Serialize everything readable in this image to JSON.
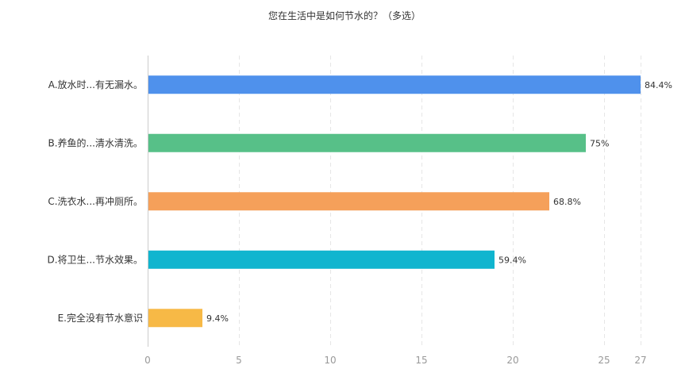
{
  "chart_data": {
    "type": "bar",
    "orientation": "horizontal",
    "title": "您在生活中是如何节水的？（多选）",
    "categories": [
      "A.放水时...有无漏水。",
      "B.养鱼的...清水清洗。",
      "C.洗衣水...再冲厕所。",
      "D.将卫生...节水效果。",
      "E.完全没有节水意识"
    ],
    "values": [
      27,
      24,
      22,
      19,
      3
    ],
    "data_labels": [
      "84.4%",
      "75%",
      "68.8%",
      "59.4%",
      "9.4%"
    ],
    "colors": [
      "#4f91ec",
      "#57c088",
      "#f5a05a",
      "#10b5cf",
      "#f7b946"
    ],
    "xlim": [
      0,
      27
    ],
    "x_ticks": [
      0,
      5,
      10,
      15,
      20,
      25,
      27
    ],
    "grid": true
  }
}
